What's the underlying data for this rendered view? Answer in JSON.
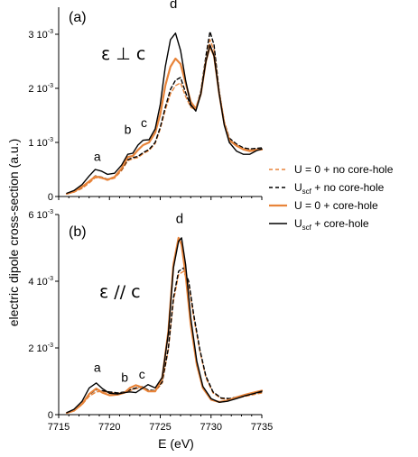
{
  "y_label": "electric dipole cross-section (a.u.)",
  "x_label": "E (eV)",
  "legend": [
    {
      "text": "U = 0 + no core-hole",
      "sub": "",
      "color": "#e8843a",
      "dash": "4,3",
      "width": 1.4
    },
    {
      "text": "U",
      "sub": "scf",
      "rest": " + no core-hole",
      "color": "#000000",
      "dash": "4,3",
      "width": 1.4
    },
    {
      "text": "U = 0 + core-hole",
      "sub": "",
      "color": "#e8843a",
      "dash": "",
      "width": 2.2
    },
    {
      "text": "U",
      "sub": "scf",
      "rest": " + core-hole",
      "color": "#000000",
      "dash": "",
      "width": 1.4
    }
  ],
  "chart_data": [
    {
      "type": "line",
      "panel_label": "(a)",
      "polarization": "ε ⊥ c",
      "peak_labels": [
        {
          "text": "a",
          "x": 7718.8,
          "y": 0.00066
        },
        {
          "text": "b",
          "x": 7721.8,
          "y": 0.00116
        },
        {
          "text": "c",
          "x": 7723.4,
          "y": 0.00128
        },
        {
          "text": "d",
          "x": 7726.3,
          "y": 0.00348
        }
      ],
      "xlim": [
        7715,
        7735
      ],
      "ylim": [
        0,
        0.0035
      ],
      "y_ticks": [
        {
          "value": 0,
          "label": "0",
          "exp": ""
        },
        {
          "value": 0.001,
          "label": "1 10",
          "exp": "-3"
        },
        {
          "value": 0.002,
          "label": "2 10",
          "exp": "-3"
        },
        {
          "value": 0.003,
          "label": "3 10",
          "exp": "-3"
        }
      ],
      "series": [
        {
          "name": "U = 0 + no core-hole",
          "x": [
            7715.8,
            7716.5,
            7717.3,
            7718.0,
            7718.6,
            7719.2,
            7719.8,
            7720.5,
            7721.2,
            7721.8,
            7722.3,
            7722.8,
            7723.3,
            7723.9,
            7724.5,
            7725.0,
            7725.5,
            7726.0,
            7726.5,
            7727.0,
            7727.5,
            7728.0,
            7728.5,
            7729.0,
            7729.5,
            7729.9,
            7730.3,
            7730.8,
            7731.3,
            7731.8,
            7732.5,
            7733.2,
            7733.8,
            7734.5,
            7735.0
          ],
          "y": [
            5e-05,
            8e-05,
            0.00015,
            0.00025,
            0.00035,
            0.00034,
            0.0003,
            0.00034,
            0.00048,
            0.00066,
            0.0007,
            0.00072,
            0.00079,
            0.00085,
            0.00098,
            0.00125,
            0.0016,
            0.0019,
            0.00205,
            0.0021,
            0.00185,
            0.00165,
            0.0016,
            0.0019,
            0.0025,
            0.0029,
            0.0027,
            0.0019,
            0.00135,
            0.00105,
            0.00095,
            0.00088,
            0.00086,
            0.00087,
            0.00088
          ]
        },
        {
          "name": "Uscf + no core-hole",
          "x": [
            7715.8,
            7716.5,
            7717.3,
            7718.0,
            7718.6,
            7719.2,
            7719.8,
            7720.5,
            7721.2,
            7721.8,
            7722.3,
            7722.8,
            7723.3,
            7723.9,
            7724.5,
            7725.0,
            7725.5,
            7726.0,
            7726.5,
            7727.0,
            7727.5,
            7728.0,
            7728.5,
            7729.0,
            7729.5,
            7729.9,
            7730.3,
            7730.8,
            7731.3,
            7731.8,
            7732.5,
            7733.2,
            7733.8,
            7734.5,
            7735.0
          ],
          "y": [
            5e-05,
            9e-05,
            0.00017,
            0.00028,
            0.00038,
            0.00036,
            0.00032,
            0.00036,
            0.0005,
            0.00068,
            0.00072,
            0.00074,
            0.00081,
            0.00087,
            0.001,
            0.00128,
            0.00165,
            0.00198,
            0.00215,
            0.0022,
            0.00192,
            0.00168,
            0.00162,
            0.00195,
            0.0026,
            0.00305,
            0.0028,
            0.00195,
            0.00138,
            0.00108,
            0.00097,
            0.0009,
            0.00088,
            0.00089,
            0.0009
          ]
        },
        {
          "name": "U = 0 + core-hole",
          "x": [
            7715.8,
            7716.5,
            7717.3,
            7718.0,
            7718.6,
            7719.2,
            7719.8,
            7720.5,
            7721.2,
            7721.8,
            7722.3,
            7722.8,
            7723.3,
            7723.9,
            7724.5,
            7725.0,
            7725.5,
            7726.0,
            7726.5,
            7727.0,
            7727.5,
            7728.0,
            7728.5,
            7729.0,
            7729.5,
            7729.9,
            7730.3,
            7730.8,
            7731.3,
            7731.8,
            7732.5,
            7733.2,
            7733.8,
            7734.5,
            7735.0
          ],
          "y": [
            5e-05,
            9e-05,
            0.00018,
            0.00028,
            0.00037,
            0.00035,
            0.00031,
            0.00036,
            0.00052,
            0.00073,
            0.00075,
            0.00086,
            0.00095,
            0.001,
            0.00118,
            0.00152,
            0.00205,
            0.0024,
            0.00255,
            0.00245,
            0.0021,
            0.00175,
            0.00162,
            0.0019,
            0.0025,
            0.00278,
            0.0026,
            0.0019,
            0.00135,
            0.00104,
            0.00094,
            0.00087,
            0.00084,
            0.00086,
            0.00087
          ]
        },
        {
          "name": "Uscf + core-hole",
          "x": [
            7715.8,
            7716.5,
            7717.3,
            7718.0,
            7718.6,
            7719.2,
            7719.8,
            7720.5,
            7721.2,
            7721.8,
            7722.3,
            7722.8,
            7723.3,
            7723.9,
            7724.5,
            7725.0,
            7725.5,
            7726.0,
            7726.5,
            7727.0,
            7727.5,
            7728.0,
            7728.5,
            7729.0,
            7729.5,
            7729.9,
            7730.3,
            7730.8,
            7731.3,
            7731.8,
            7732.5,
            7733.2,
            7733.8,
            7734.5,
            7735.0
          ],
          "y": [
            6e-05,
            0.00011,
            0.00022,
            0.00038,
            0.0005,
            0.00047,
            0.00041,
            0.00043,
            0.00058,
            0.00078,
            0.0008,
            0.00095,
            0.00104,
            0.00105,
            0.00125,
            0.0017,
            0.0024,
            0.0029,
            0.00302,
            0.0027,
            0.00215,
            0.0017,
            0.00158,
            0.0019,
            0.0025,
            0.0028,
            0.0026,
            0.0019,
            0.00132,
            0.001,
            0.00084,
            0.00078,
            0.00078,
            0.00085,
            0.00088
          ]
        }
      ]
    },
    {
      "type": "line",
      "panel_label": "(b)",
      "polarization": "ε // c",
      "peak_labels": [
        {
          "text": "a",
          "x": 7718.8,
          "y": 0.00128
        },
        {
          "text": "b",
          "x": 7721.5,
          "y": 0.00098
        },
        {
          "text": "c",
          "x": 7723.2,
          "y": 0.00108
        },
        {
          "text": "d",
          "x": 7726.9,
          "y": 0.00575
        }
      ],
      "xlim": [
        7715,
        7735
      ],
      "ylim": [
        0,
        0.006
      ],
      "x_ticks": [
        7715,
        7720,
        7725,
        7730,
        7735
      ],
      "y_ticks": [
        {
          "value": 0,
          "label": "0",
          "exp": ""
        },
        {
          "value": 0.002,
          "label": "2 10",
          "exp": "-3"
        },
        {
          "value": 0.004,
          "label": "4 10",
          "exp": "-3"
        },
        {
          "value": 0.006,
          "label": "6 10",
          "exp": "-3"
        }
      ],
      "series": [
        {
          "name": "U = 0 + no core-hole",
          "x": [
            7715.8,
            7716.5,
            7717.3,
            7718.0,
            7718.7,
            7719.3,
            7720.0,
            7720.8,
            7721.5,
            7722.0,
            7722.6,
            7723.2,
            7723.8,
            7724.5,
            7725.2,
            7725.8,
            7726.3,
            7726.8,
            7727.3,
            7727.8,
            7728.3,
            7728.9,
            7729.5,
            7730.2,
            7731.0,
            7731.8,
            7732.6,
            7733.4,
            7734.2,
            7735.0
          ],
          "y": [
            5e-05,
            0.00012,
            0.0003,
            0.00055,
            0.00068,
            0.0007,
            0.00066,
            0.00064,
            0.00066,
            0.00072,
            0.00078,
            0.0008,
            0.0007,
            0.0007,
            0.00095,
            0.00195,
            0.0034,
            0.0042,
            0.0043,
            0.0039,
            0.0029,
            0.0019,
            0.0011,
            0.00065,
            0.00048,
            0.00045,
            0.0005,
            0.00055,
            0.0006,
            0.00065
          ]
        },
        {
          "name": "Uscf + no core-hole",
          "x": [
            7715.8,
            7716.5,
            7717.3,
            7718.0,
            7718.7,
            7719.3,
            7720.0,
            7720.8,
            7721.5,
            7722.0,
            7722.6,
            7723.2,
            7723.8,
            7724.5,
            7725.2,
            7725.8,
            7726.3,
            7726.8,
            7727.3,
            7727.8,
            7728.3,
            7728.9,
            7729.5,
            7730.2,
            7731.0,
            7731.8,
            7732.6,
            7733.4,
            7734.2,
            7735.0
          ],
          "y": [
            5e-05,
            0.00013,
            0.00033,
            0.0006,
            0.00075,
            0.00072,
            0.00068,
            0.00065,
            0.00068,
            0.00074,
            0.0008,
            0.00084,
            0.00074,
            0.00072,
            0.00098,
            0.002,
            0.0035,
            0.0043,
            0.0044,
            0.004,
            0.003,
            0.00195,
            0.00115,
            0.00068,
            0.0005,
            0.00048,
            0.00053,
            0.00058,
            0.00064,
            0.00068
          ]
        },
        {
          "name": "U = 0 + core-hole",
          "x": [
            7715.8,
            7716.5,
            7717.3,
            7718.0,
            7718.7,
            7719.3,
            7720.0,
            7720.8,
            7721.5,
            7722.0,
            7722.6,
            7723.2,
            7723.8,
            7724.5,
            7725.2,
            7725.8,
            7726.3,
            7726.8,
            7727.1,
            7727.5,
            7728.0,
            7728.6,
            7729.2,
            7730.0,
            7730.8,
            7731.6,
            7732.5,
            7733.4,
            7734.2,
            7735.0
          ],
          "y": [
            5e-05,
            0.00012,
            0.00032,
            0.00062,
            0.00078,
            0.00066,
            0.00058,
            0.0006,
            0.00066,
            0.0008,
            0.00088,
            0.00082,
            0.0007,
            0.0007,
            0.0011,
            0.0025,
            0.0045,
            0.0053,
            0.0051,
            0.0042,
            0.0027,
            0.0015,
            0.0008,
            0.00045,
            0.00038,
            0.00042,
            0.00052,
            0.0006,
            0.00066,
            0.00072
          ]
        },
        {
          "name": "Uscf + core-hole",
          "x": [
            7715.8,
            7716.5,
            7717.3,
            7718.0,
            7718.7,
            7719.3,
            7720.0,
            7720.8,
            7721.5,
            7722.0,
            7722.6,
            7723.2,
            7723.8,
            7724.5,
            7725.2,
            7725.8,
            7726.3,
            7726.8,
            7727.1,
            7727.5,
            7728.0,
            7728.6,
            7729.2,
            7730.0,
            7730.8,
            7731.6,
            7732.5,
            7733.4,
            7734.2,
            7735.0
          ],
          "y": [
            6e-05,
            0.00016,
            0.0004,
            0.0008,
            0.00095,
            0.00078,
            0.00064,
            0.00062,
            0.00066,
            0.00068,
            0.00066,
            0.00078,
            0.0009,
            0.0008,
            0.00112,
            0.00245,
            0.0044,
            0.0052,
            0.0053,
            0.0045,
            0.0029,
            0.0016,
            0.00085,
            0.00048,
            0.00037,
            0.0004,
            0.00048,
            0.00057,
            0.00063,
            0.0007
          ]
        }
      ]
    }
  ]
}
